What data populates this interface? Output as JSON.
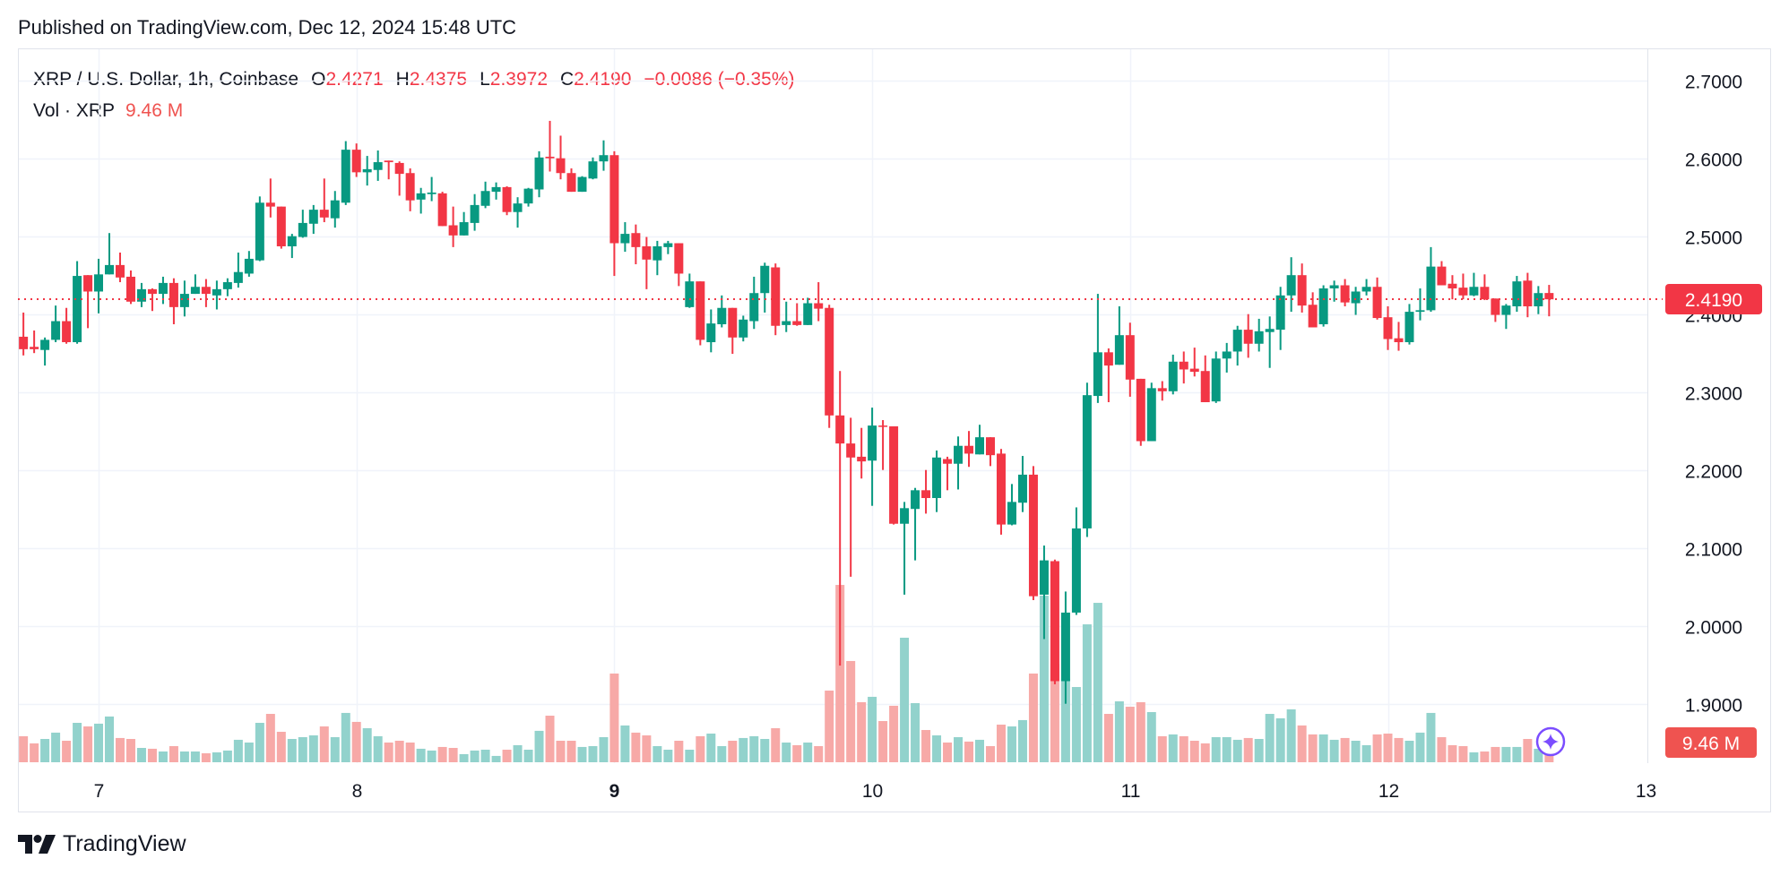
{
  "header": {
    "published": "Published on TradingView.com, Dec 12, 2024 15:48 UTC"
  },
  "legend": {
    "symbol": "XRP / U.S. Dollar, 1h, Coinbase",
    "open_label": "O",
    "open": "2.4271",
    "high_label": "H",
    "high": "2.4375",
    "low_label": "L",
    "low": "2.3972",
    "close_label": "C",
    "close": "2.4190",
    "change": "−0.0086 (−0.35%)",
    "vol_label": "Vol · XRP",
    "vol_value": "9.46 M"
  },
  "brand": {
    "name": "TradingView",
    "logo_icon": "tradingview-logo-icon"
  },
  "colors": {
    "up": "#089981",
    "down": "#F23645",
    "vol_up": "#92D2CC",
    "vol_down": "#F7A9A7",
    "last_price": "#F23645",
    "vol_badge": "#EF5350",
    "assistant_icon": "#7B4DFF"
  },
  "icons": {
    "assistant": "sparkle-icon"
  },
  "chart_data": {
    "type": "candlestick",
    "title": "",
    "interval": "1h",
    "columns": [
      "time",
      "open",
      "high",
      "low",
      "close",
      "volume_M"
    ],
    "price_ticks": [
      "2.7000",
      "2.6000",
      "2.5000",
      "2.4000",
      "2.3000",
      "2.2000",
      "2.1000",
      "2.0000",
      "1.9000"
    ],
    "price_tick_values": [
      2.7,
      2.6,
      2.5,
      2.4,
      2.3,
      2.2,
      2.1,
      2.0,
      1.9
    ],
    "ylim": [
      1.88,
      2.72
    ],
    "x_ticks": [
      {
        "label": "7",
        "day": 7,
        "bold": false
      },
      {
        "label": "8",
        "day": 8,
        "bold": false
      },
      {
        "label": "9",
        "day": 9,
        "bold": true
      },
      {
        "label": "10",
        "day": 10,
        "bold": false
      },
      {
        "label": "11",
        "day": 11,
        "bold": false
      },
      {
        "label": "12",
        "day": 12,
        "bold": false
      },
      {
        "label": "13",
        "day": 13,
        "bold": false
      }
    ],
    "grid": true,
    "last_price_label": "2.4190",
    "last_price": 2.419,
    "last_volume_label": "9.46 M",
    "bars": [
      [
        "12-06 17:00",
        2.371,
        2.402,
        2.347,
        2.355,
        21.8
      ],
      [
        "12-06 18:00",
        2.358,
        2.379,
        2.35,
        2.355,
        15.8
      ],
      [
        "12-06 19:00",
        2.354,
        2.37,
        2.334,
        2.367,
        19.5
      ],
      [
        "12-06 20:00",
        2.367,
        2.411,
        2.364,
        2.391,
        24.8
      ],
      [
        "12-06 21:00",
        2.391,
        2.408,
        2.362,
        2.364,
        18.0
      ],
      [
        "12-06 22:00",
        2.364,
        2.468,
        2.362,
        2.449,
        33.0
      ],
      [
        "12-06 23:00",
        2.45,
        2.45,
        2.382,
        2.429,
        30.0
      ],
      [
        "12-07 00:00",
        2.429,
        2.471,
        2.401,
        2.451,
        32.3
      ],
      [
        "12-07 01:00",
        2.451,
        2.504,
        2.451,
        2.463,
        38.3
      ],
      [
        "12-07 02:00",
        2.463,
        2.479,
        2.441,
        2.447,
        20.3
      ],
      [
        "12-07 03:00",
        2.448,
        2.456,
        2.413,
        2.416,
        19.5
      ],
      [
        "12-07 04:00",
        2.416,
        2.44,
        2.409,
        2.432,
        12.0
      ],
      [
        "12-07 05:00",
        2.432,
        2.433,
        2.404,
        2.426,
        11.3
      ],
      [
        "12-07 06:00",
        2.426,
        2.448,
        2.413,
        2.44,
        9.0
      ],
      [
        "12-07 07:00",
        2.44,
        2.446,
        2.387,
        2.409,
        13.5
      ],
      [
        "12-07 08:00",
        2.409,
        2.443,
        2.397,
        2.426,
        9.0
      ],
      [
        "12-07 09:00",
        2.426,
        2.451,
        2.426,
        2.435,
        9.0
      ],
      [
        "12-07 10:00",
        2.435,
        2.445,
        2.409,
        2.426,
        7.5
      ],
      [
        "12-07 11:00",
        2.424,
        2.443,
        2.406,
        2.432,
        8.3
      ],
      [
        "12-07 12:00",
        2.432,
        2.446,
        2.423,
        2.441,
        9.8
      ],
      [
        "12-07 13:00",
        2.44,
        2.479,
        2.434,
        2.454,
        18.8
      ],
      [
        "12-07 14:00",
        2.452,
        2.481,
        2.448,
        2.471,
        16.5
      ],
      [
        "12-07 15:00",
        2.469,
        2.551,
        2.468,
        2.543,
        33.0
      ],
      [
        "12-07 16:00",
        2.543,
        2.574,
        2.524,
        2.538,
        40.5
      ],
      [
        "12-07 17:00",
        2.538,
        2.538,
        2.484,
        2.487,
        25.5
      ],
      [
        "12-07 18:00",
        2.487,
        2.503,
        2.472,
        2.5,
        19.5
      ],
      [
        "12-07 19:00",
        2.499,
        2.534,
        2.498,
        2.517,
        21.0
      ],
      [
        "12-07 20:00",
        2.516,
        2.54,
        2.503,
        2.534,
        22.5
      ],
      [
        "12-07 21:00",
        2.534,
        2.574,
        2.518,
        2.524,
        30.0
      ],
      [
        "12-07 22:00",
        2.523,
        2.558,
        2.511,
        2.546,
        21.0
      ],
      [
        "12-07 23:00",
        2.543,
        2.622,
        2.54,
        2.611,
        41.3
      ],
      [
        "12-08 00:00",
        2.611,
        2.619,
        2.576,
        2.582,
        33.8
      ],
      [
        "12-08 01:00",
        2.582,
        2.603,
        2.565,
        2.586,
        28.5
      ],
      [
        "12-08 02:00",
        2.585,
        2.61,
        2.571,
        2.595,
        21.8
      ],
      [
        "12-08 03:00",
        2.597,
        2.597,
        2.573,
        2.595,
        16.5
      ],
      [
        "12-08 04:00",
        2.594,
        2.596,
        2.552,
        2.58,
        18.0
      ],
      [
        "12-08 05:00",
        2.581,
        2.587,
        2.532,
        2.546,
        16.5
      ],
      [
        "12-08 06:00",
        2.547,
        2.562,
        2.529,
        2.555,
        11.3
      ],
      [
        "12-08 07:00",
        2.554,
        2.576,
        2.545,
        2.556,
        9.8
      ],
      [
        "12-08 08:00",
        2.555,
        2.557,
        2.513,
        2.513,
        12.8
      ],
      [
        "12-08 09:00",
        2.514,
        2.538,
        2.486,
        2.501,
        12.0
      ],
      [
        "12-08 10:00",
        2.501,
        2.531,
        2.501,
        2.518,
        6.8
      ],
      [
        "12-08 11:00",
        2.517,
        2.554,
        2.507,
        2.54,
        9.8
      ],
      [
        "12-08 12:00",
        2.539,
        2.57,
        2.536,
        2.558,
        10.5
      ],
      [
        "12-08 13:00",
        2.557,
        2.569,
        2.547,
        2.563,
        5.3
      ],
      [
        "12-08 14:00",
        2.563,
        2.564,
        2.527,
        2.531,
        10.5
      ],
      [
        "12-08 15:00",
        2.531,
        2.55,
        2.511,
        2.542,
        14.3
      ],
      [
        "12-08 16:00",
        2.542,
        2.562,
        2.538,
        2.561,
        10.5
      ],
      [
        "12-08 17:00",
        2.56,
        2.609,
        2.55,
        2.601,
        26.3
      ],
      [
        "12-08 18:00",
        2.602,
        2.648,
        2.583,
        2.6,
        39.0
      ],
      [
        "12-08 19:00",
        2.6,
        2.629,
        2.573,
        2.581,
        18.0
      ],
      [
        "12-08 20:00",
        2.581,
        2.587,
        2.557,
        2.557,
        18.0
      ],
      [
        "12-08 21:00",
        2.557,
        2.577,
        2.557,
        2.576,
        12.8
      ],
      [
        "12-08 22:00",
        2.574,
        2.601,
        2.573,
        2.596,
        13.5
      ],
      [
        "12-08 23:00",
        2.596,
        2.623,
        2.584,
        2.604,
        21.0
      ],
      [
        "12-09 00:00",
        2.604,
        2.609,
        2.449,
        2.491,
        74.3
      ],
      [
        "12-09 01:00",
        2.491,
        2.518,
        2.48,
        2.503,
        30.8
      ],
      [
        "12-09 02:00",
        2.504,
        2.515,
        2.464,
        2.486,
        24.8
      ],
      [
        "12-09 03:00",
        2.487,
        2.499,
        2.432,
        2.47,
        22.5
      ],
      [
        "12-09 04:00",
        2.469,
        2.494,
        2.45,
        2.487,
        13.5
      ],
      [
        "12-09 05:00",
        2.486,
        2.494,
        2.477,
        2.491,
        10.5
      ],
      [
        "12-09 06:00",
        2.491,
        2.491,
        2.436,
        2.452,
        18.0
      ],
      [
        "12-09 07:00",
        2.409,
        2.452,
        2.408,
        2.442,
        10.5
      ],
      [
        "12-09 08:00",
        2.442,
        2.442,
        2.36,
        2.367,
        21.8
      ],
      [
        "12-09 09:00",
        2.364,
        2.406,
        2.351,
        2.388,
        24.0
      ],
      [
        "12-09 10:00",
        2.387,
        2.424,
        2.383,
        2.408,
        13.5
      ],
      [
        "12-09 11:00",
        2.408,
        2.408,
        2.349,
        2.37,
        18.0
      ],
      [
        "12-09 12:00",
        2.37,
        2.398,
        2.365,
        2.393,
        20.3
      ],
      [
        "12-09 13:00",
        2.391,
        2.448,
        2.381,
        2.427,
        21.8
      ],
      [
        "12-09 14:00",
        2.427,
        2.466,
        2.402,
        2.462,
        19.5
      ],
      [
        "12-09 15:00",
        2.46,
        2.465,
        2.373,
        2.385,
        28.5
      ],
      [
        "12-09 16:00",
        2.386,
        2.416,
        2.377,
        2.391,
        16.5
      ],
      [
        "12-09 17:00",
        2.391,
        2.414,
        2.385,
        2.386,
        14.3
      ],
      [
        "12-09 18:00",
        2.386,
        2.421,
        2.386,
        2.414,
        16.5
      ],
      [
        "12-09 19:00",
        2.414,
        2.441,
        2.391,
        2.407,
        13.5
      ],
      [
        "12-09 20:00",
        2.408,
        2.412,
        2.254,
        2.27,
        60.0
      ],
      [
        "12-09 21:00",
        2.27,
        2.327,
        1.949,
        2.234,
        148.5
      ],
      [
        "12-09 22:00",
        2.234,
        2.267,
        2.063,
        2.216,
        84.8
      ],
      [
        "12-09 23:00",
        2.217,
        2.254,
        2.189,
        2.211,
        50.3
      ],
      [
        "12-10 00:00",
        2.212,
        2.28,
        2.154,
        2.257,
        54.8
      ],
      [
        "12-10 01:00",
        2.257,
        2.264,
        2.2,
        2.256,
        34.5
      ],
      [
        "12-10 02:00",
        2.256,
        2.256,
        2.13,
        2.131,
        47.3
      ],
      [
        "12-10 03:00",
        2.131,
        2.159,
        2.04,
        2.151,
        104.3
      ],
      [
        "12-10 04:00",
        2.15,
        2.177,
        2.084,
        2.174,
        49.5
      ],
      [
        "12-10 05:00",
        2.174,
        2.2,
        2.144,
        2.164,
        27.0
      ],
      [
        "12-10 06:00",
        2.164,
        2.225,
        2.146,
        2.216,
        22.5
      ],
      [
        "12-10 07:00",
        2.214,
        2.217,
        2.174,
        2.208,
        16.5
      ],
      [
        "12-10 08:00",
        2.208,
        2.243,
        2.175,
        2.231,
        21.0
      ],
      [
        "12-10 09:00",
        2.231,
        2.25,
        2.204,
        2.221,
        17.3
      ],
      [
        "12-10 10:00",
        2.22,
        2.258,
        2.22,
        2.242,
        18.8
      ],
      [
        "12-10 11:00",
        2.242,
        2.242,
        2.205,
        2.219,
        13.5
      ],
      [
        "12-10 12:00",
        2.221,
        2.227,
        2.117,
        2.13,
        31.5
      ],
      [
        "12-10 13:00",
        2.13,
        2.182,
        2.129,
        2.159,
        30.0
      ],
      [
        "12-10 14:00",
        2.158,
        2.218,
        2.146,
        2.194,
        35.3
      ],
      [
        "12-10 15:00",
        2.194,
        2.205,
        2.033,
        2.038,
        74.3
      ],
      [
        "12-10 16:00",
        2.04,
        2.103,
        1.983,
        2.084,
        139.5
      ],
      [
        "12-10 17:00",
        2.083,
        2.085,
        1.925,
        1.929,
        82.5
      ],
      [
        "12-10 18:00",
        1.929,
        2.044,
        1.9,
        2.017,
        70.0
      ],
      [
        "12-10 19:00",
        2.017,
        2.152,
        2.014,
        2.125,
        63.0
      ],
      [
        "12-10 20:00",
        2.125,
        2.312,
        2.114,
        2.296,
        115.5
      ],
      [
        "12-10 21:00",
        2.295,
        2.426,
        2.286,
        2.351,
        133.5
      ],
      [
        "12-10 22:00",
        2.351,
        2.356,
        2.287,
        2.334,
        40.5
      ],
      [
        "12-10 23:00",
        2.335,
        2.41,
        2.335,
        2.373,
        51.0
      ],
      [
        "12-11 00:00",
        2.373,
        2.389,
        2.294,
        2.316,
        46.5
      ],
      [
        "12-11 01:00",
        2.317,
        2.317,
        2.231,
        2.237,
        50.3
      ],
      [
        "12-11 02:00",
        2.237,
        2.312,
        2.237,
        2.305,
        42.0
      ],
      [
        "12-11 03:00",
        2.305,
        2.314,
        2.289,
        2.301,
        21.8
      ],
      [
        "12-11 04:00",
        2.301,
        2.348,
        2.297,
        2.339,
        23.3
      ],
      [
        "12-11 05:00",
        2.339,
        2.352,
        2.311,
        2.329,
        21.8
      ],
      [
        "12-11 06:00",
        2.33,
        2.357,
        2.32,
        2.326,
        18.0
      ],
      [
        "12-11 07:00",
        2.327,
        2.347,
        2.287,
        2.287,
        15.8
      ],
      [
        "12-11 08:00",
        2.288,
        2.352,
        2.286,
        2.343,
        21.0
      ],
      [
        "12-11 09:00",
        2.343,
        2.363,
        2.325,
        2.352,
        21.0
      ],
      [
        "12-11 10:00",
        2.352,
        2.385,
        2.334,
        2.38,
        18.8
      ],
      [
        "12-11 11:00",
        2.38,
        2.4,
        2.344,
        2.362,
        20.3
      ],
      [
        "12-11 12:00",
        2.362,
        2.394,
        2.352,
        2.378,
        19.5
      ],
      [
        "12-11 13:00",
        2.377,
        2.397,
        2.331,
        2.381,
        40.5
      ],
      [
        "12-11 14:00",
        2.38,
        2.435,
        2.354,
        2.424,
        36.8
      ],
      [
        "12-11 15:00",
        2.424,
        2.473,
        2.403,
        2.45,
        44.3
      ],
      [
        "12-11 16:00",
        2.45,
        2.465,
        2.402,
        2.411,
        30.8
      ],
      [
        "12-11 17:00",
        2.412,
        2.428,
        2.383,
        2.383,
        23.3
      ],
      [
        "12-11 18:00",
        2.387,
        2.437,
        2.384,
        2.433,
        23.3
      ],
      [
        "12-11 19:00",
        2.433,
        2.443,
        2.416,
        2.437,
        18.8
      ],
      [
        "12-11 20:00",
        2.437,
        2.445,
        2.41,
        2.415,
        20.3
      ],
      [
        "12-11 21:00",
        2.414,
        2.435,
        2.399,
        2.429,
        18.0
      ],
      [
        "12-11 22:00",
        2.429,
        2.445,
        2.424,
        2.435,
        14.3
      ],
      [
        "12-11 23:00",
        2.435,
        2.447,
        2.393,
        2.395,
        23.3
      ],
      [
        "12-12 00:00",
        2.396,
        2.41,
        2.354,
        2.368,
        24.0
      ],
      [
        "12-12 01:00",
        2.369,
        2.39,
        2.353,
        2.364,
        20.3
      ],
      [
        "12-12 02:00",
        2.364,
        2.413,
        2.361,
        2.403,
        18.0
      ],
      [
        "12-12 03:00",
        2.403,
        2.433,
        2.392,
        2.405,
        24.8
      ],
      [
        "12-12 04:00",
        2.405,
        2.486,
        2.403,
        2.461,
        41.3
      ],
      [
        "12-12 05:00",
        2.461,
        2.468,
        2.437,
        2.437,
        21.0
      ],
      [
        "12-12 06:00",
        2.439,
        2.45,
        2.419,
        2.433,
        14.3
      ],
      [
        "12-12 07:00",
        2.434,
        2.452,
        2.419,
        2.424,
        13.5
      ],
      [
        "12-12 08:00",
        2.424,
        2.453,
        2.423,
        2.435,
        8.3
      ],
      [
        "12-12 09:00",
        2.435,
        2.451,
        2.418,
        2.419,
        9.0
      ],
      [
        "12-12 10:00",
        2.42,
        2.42,
        2.39,
        2.399,
        12.8
      ],
      [
        "12-12 11:00",
        2.399,
        2.413,
        2.381,
        2.411,
        12.8
      ],
      [
        "12-12 12:00",
        2.41,
        2.449,
        2.403,
        2.442,
        12.8
      ],
      [
        "12-12 13:00",
        2.443,
        2.453,
        2.396,
        2.41,
        19.5
      ],
      [
        "12-12 14:00",
        2.41,
        2.436,
        2.4,
        2.427,
        11.3
      ],
      [
        "12-12 15:00",
        2.4271,
        2.4375,
        2.3972,
        2.419,
        9.46
      ]
    ]
  }
}
